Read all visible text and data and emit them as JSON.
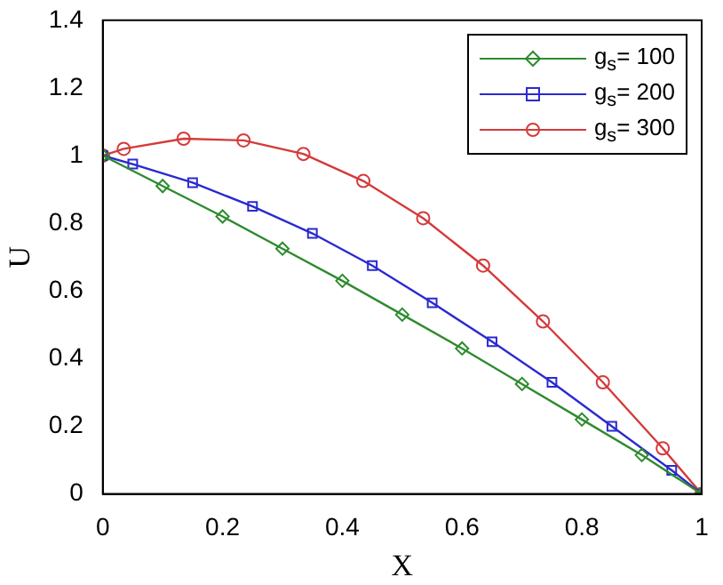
{
  "chart_data": {
    "type": "line",
    "xlabel": "X",
    "ylabel": "U",
    "xlim": [
      0,
      1
    ],
    "xticks": [
      0,
      0.2,
      0.4,
      0.6,
      0.8,
      1
    ],
    "ylim": [
      0,
      1.4
    ],
    "yticks": [
      0,
      0.2,
      0.4,
      0.6,
      0.8,
      1,
      1.2,
      1.4
    ],
    "grid": false,
    "legend": "top right",
    "series": [
      {
        "name": "g$_{s}$= 100",
        "color": "#2e8b2e",
        "marker": "diamond",
        "x": [
          0,
          0.1,
          0.2,
          0.3,
          0.4,
          0.5,
          0.6,
          0.7,
          0.8,
          0.9,
          1
        ],
        "values": [
          1,
          0.91,
          0.82,
          0.725,
          0.63,
          0.53,
          0.43,
          0.325,
          0.22,
          0.115,
          0
        ]
      },
      {
        "name": "g$_{s}$= 200",
        "color": "#2a2ad0",
        "marker": "square",
        "x": [
          0,
          0.05,
          0.15,
          0.25,
          0.35,
          0.45,
          0.55,
          0.65,
          0.75,
          0.85,
          0.95,
          1
        ],
        "values": [
          1,
          0.975,
          0.92,
          0.85,
          0.77,
          0.675,
          0.565,
          0.45,
          0.33,
          0.2,
          0.07,
          0
        ]
      },
      {
        "name": "g$_{s}$= 300",
        "color": "#d43a3a",
        "marker": "circle",
        "x": [
          0,
          0.035,
          0.135,
          0.235,
          0.335,
          0.435,
          0.535,
          0.635,
          0.735,
          0.835,
          0.935,
          1
        ],
        "values": [
          1,
          1.02,
          1.05,
          1.045,
          1.005,
          0.925,
          0.815,
          0.675,
          0.51,
          0.33,
          0.135,
          0
        ]
      }
    ]
  }
}
